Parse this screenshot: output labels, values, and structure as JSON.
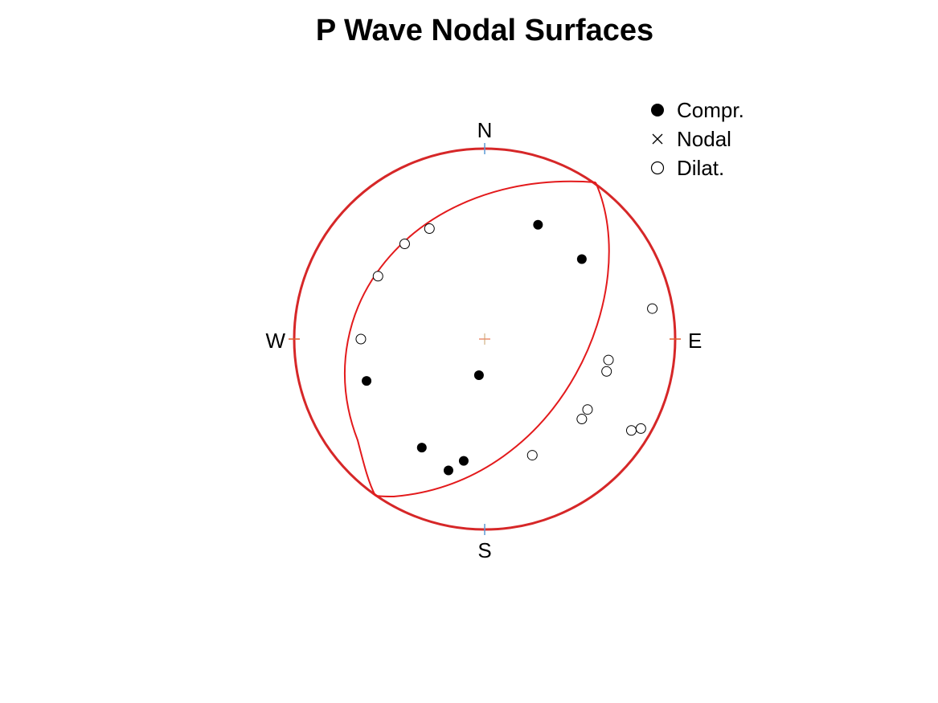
{
  "chart_data": {
    "type": "scatter",
    "title": "P Wave Nodal Surfaces",
    "projection": "stereonet",
    "directions": {
      "north": "N",
      "south": "S",
      "east": "E",
      "west": "W"
    },
    "legend": {
      "placement": "top-right",
      "entries": [
        {
          "label": "Compr.",
          "marker": "filled-circle"
        },
        {
          "label": "Nodal",
          "marker": "cross"
        },
        {
          "label": "Dilat.",
          "marker": "open-circle"
        }
      ]
    },
    "nodal_plane_color": "#e31a1c",
    "outline_color": "#d62728",
    "tick_color_ns": "#5b9bd5",
    "tick_color_ew": "#e05a2b",
    "series": [
      {
        "name": "Compr.",
        "points": [
          {
            "x": 0.28,
            "y": 0.6
          },
          {
            "x": 0.51,
            "y": 0.42
          },
          {
            "x": -0.03,
            "y": -0.19
          },
          {
            "x": -0.62,
            "y": -0.22
          },
          {
            "x": -0.33,
            "y": -0.57
          },
          {
            "x": -0.11,
            "y": -0.64
          },
          {
            "x": -0.19,
            "y": -0.69
          }
        ]
      },
      {
        "name": "Nodal",
        "points": []
      },
      {
        "name": "Dilat.",
        "points": [
          {
            "x": -0.29,
            "y": 0.58
          },
          {
            "x": -0.42,
            "y": 0.5
          },
          {
            "x": -0.56,
            "y": 0.33
          },
          {
            "x": -0.65,
            "y": 0.0
          },
          {
            "x": 0.88,
            "y": 0.16
          },
          {
            "x": 0.65,
            "y": -0.11
          },
          {
            "x": 0.64,
            "y": -0.17
          },
          {
            "x": 0.54,
            "y": -0.37
          },
          {
            "x": 0.51,
            "y": -0.42
          },
          {
            "x": 0.82,
            "y": -0.47
          },
          {
            "x": 0.77,
            "y": -0.48
          },
          {
            "x": 0.25,
            "y": -0.61
          }
        ]
      }
    ]
  }
}
